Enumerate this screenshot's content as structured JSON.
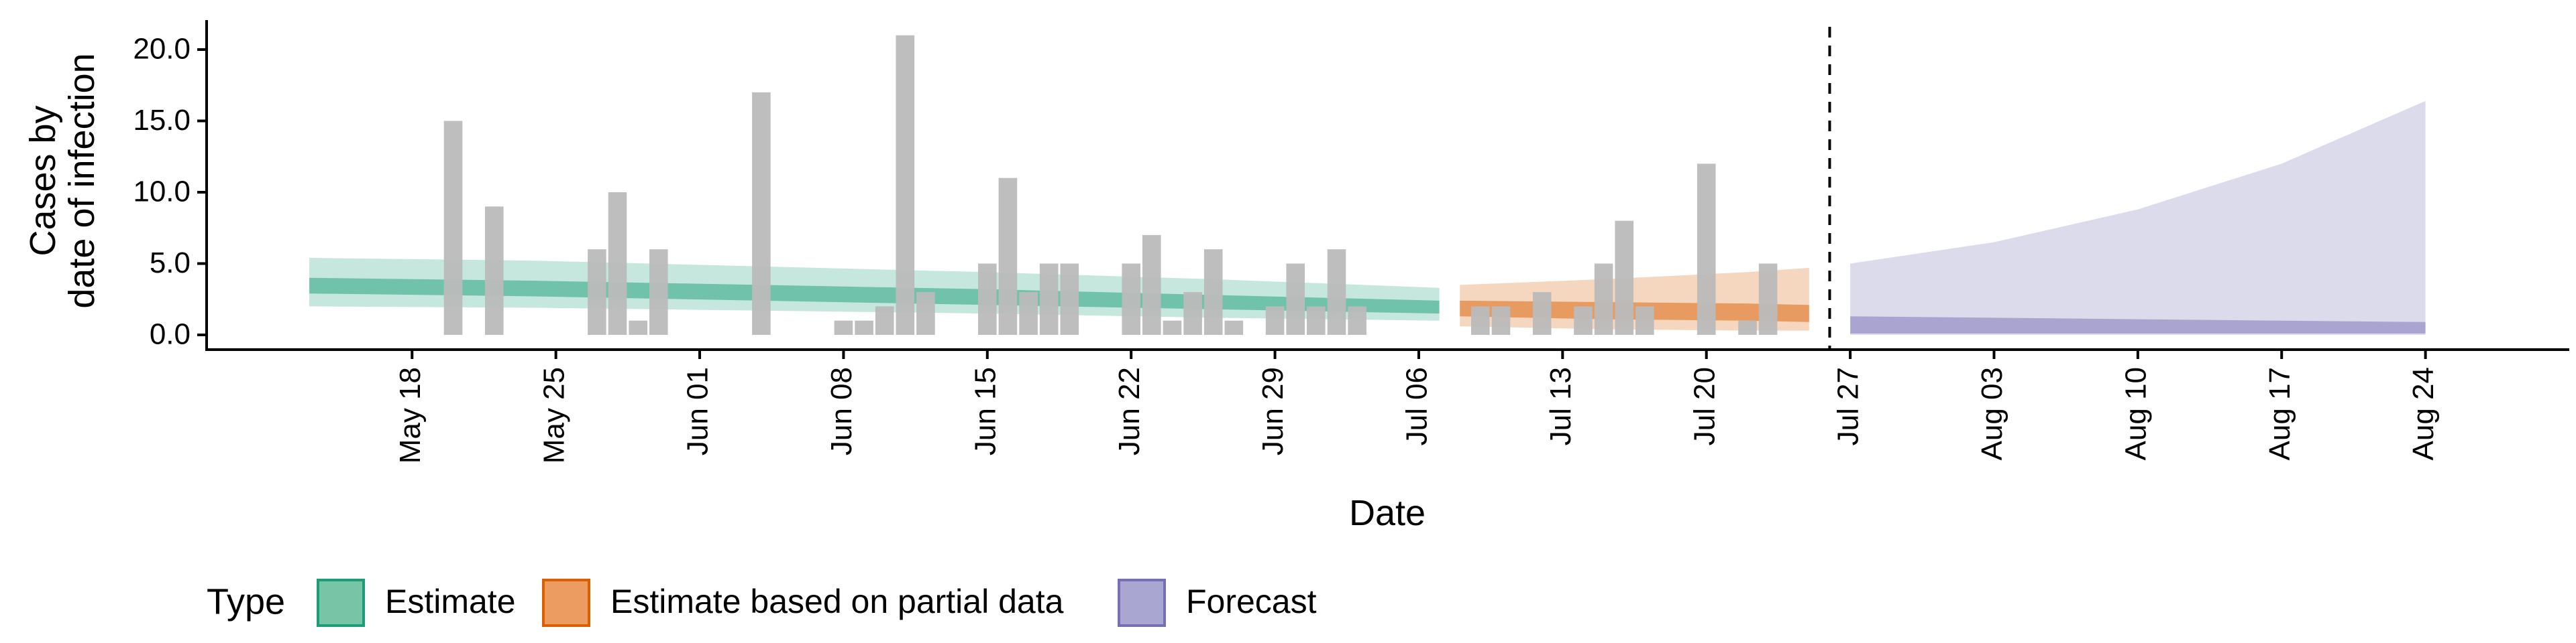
{
  "chart_data": {
    "type": "bar",
    "xlabel": "Date",
    "ylabel_line1": "Cases by",
    "ylabel_line2": "date of infection",
    "ylim": [
      0,
      22
    ],
    "yticks": [
      "0.0",
      "5.0",
      "10.0",
      "15.0",
      "20.0"
    ],
    "xlim": [
      "2020-05-08",
      "2020-08-31"
    ],
    "x_ticks": [
      {
        "date": "2020-05-18",
        "label": "May 18"
      },
      {
        "date": "2020-05-25",
        "label": "May 25"
      },
      {
        "date": "2020-06-01",
        "label": "Jun 01"
      },
      {
        "date": "2020-06-08",
        "label": "Jun 08"
      },
      {
        "date": "2020-06-15",
        "label": "Jun 15"
      },
      {
        "date": "2020-06-22",
        "label": "Jun 22"
      },
      {
        "date": "2020-06-29",
        "label": "Jun 29"
      },
      {
        "date": "2020-07-06",
        "label": "Jul 06"
      },
      {
        "date": "2020-07-13",
        "label": "Jul 13"
      },
      {
        "date": "2020-07-20",
        "label": "Jul 20"
      },
      {
        "date": "2020-07-27",
        "label": "Jul 27"
      },
      {
        "date": "2020-08-03",
        "label": "Aug 03"
      },
      {
        "date": "2020-08-10",
        "label": "Aug 10"
      },
      {
        "date": "2020-08-17",
        "label": "Aug 17"
      },
      {
        "date": "2020-08-24",
        "label": "Aug 24"
      }
    ],
    "cases": {
      "color": "#bbbbbb",
      "bars": [
        {
          "date": "2020-05-20",
          "value": 15
        },
        {
          "date": "2020-05-22",
          "value": 9
        },
        {
          "date": "2020-05-27",
          "value": 6
        },
        {
          "date": "2020-05-28",
          "value": 10
        },
        {
          "date": "2020-05-29",
          "value": 1
        },
        {
          "date": "2020-05-30",
          "value": 6
        },
        {
          "date": "2020-06-04",
          "value": 17
        },
        {
          "date": "2020-06-08",
          "value": 1
        },
        {
          "date": "2020-06-09",
          "value": 1
        },
        {
          "date": "2020-06-10",
          "value": 2
        },
        {
          "date": "2020-06-11",
          "value": 21
        },
        {
          "date": "2020-06-12",
          "value": 3
        },
        {
          "date": "2020-06-15",
          "value": 5
        },
        {
          "date": "2020-06-16",
          "value": 11
        },
        {
          "date": "2020-06-17",
          "value": 3
        },
        {
          "date": "2020-06-18",
          "value": 5
        },
        {
          "date": "2020-06-19",
          "value": 5
        },
        {
          "date": "2020-06-22",
          "value": 5
        },
        {
          "date": "2020-06-23",
          "value": 7
        },
        {
          "date": "2020-06-24",
          "value": 1
        },
        {
          "date": "2020-06-25",
          "value": 3
        },
        {
          "date": "2020-06-26",
          "value": 6
        },
        {
          "date": "2020-06-27",
          "value": 1
        },
        {
          "date": "2020-06-29",
          "value": 2
        },
        {
          "date": "2020-06-30",
          "value": 5
        },
        {
          "date": "2020-07-01",
          "value": 2
        },
        {
          "date": "2020-07-02",
          "value": 6
        },
        {
          "date": "2020-07-03",
          "value": 2
        },
        {
          "date": "2020-07-09",
          "value": 2
        },
        {
          "date": "2020-07-10",
          "value": 2
        },
        {
          "date": "2020-07-12",
          "value": 3
        },
        {
          "date": "2020-07-14",
          "value": 2
        },
        {
          "date": "2020-07-15",
          "value": 5
        },
        {
          "date": "2020-07-16",
          "value": 8
        },
        {
          "date": "2020-07-17",
          "value": 2
        },
        {
          "date": "2020-07-20",
          "value": 12
        },
        {
          "date": "2020-07-22",
          "value": 1
        },
        {
          "date": "2020-07-23",
          "value": 5
        }
      ]
    },
    "forecast_start": "2020-07-26",
    "series": [
      {
        "name": "Estimate",
        "fill": "#1b9e77",
        "legend_fill": "#77c4a7",
        "legend_stroke": "#1b9e77",
        "points": [
          {
            "date": "2020-05-13",
            "median": 3.4,
            "inner_lo": 2.9,
            "inner_hi": 4.0,
            "outer_lo": 2.0,
            "outer_hi": 5.4
          },
          {
            "date": "2020-05-24",
            "median": 3.2,
            "inner_lo": 2.7,
            "inner_hi": 3.8,
            "outer_lo": 1.9,
            "outer_hi": 5.2
          },
          {
            "date": "2020-06-04",
            "median": 2.9,
            "inner_lo": 2.4,
            "inner_hi": 3.5,
            "outer_lo": 1.7,
            "outer_hi": 4.8
          },
          {
            "date": "2020-06-15",
            "median": 2.6,
            "inner_lo": 2.1,
            "inner_hi": 3.2,
            "outer_lo": 1.5,
            "outer_hi": 4.4
          },
          {
            "date": "2020-06-26",
            "median": 2.2,
            "inner_lo": 1.8,
            "inner_hi": 2.8,
            "outer_lo": 1.2,
            "outer_hi": 3.9
          },
          {
            "date": "2020-07-07",
            "median": 1.9,
            "inner_lo": 1.5,
            "inner_hi": 2.4,
            "outer_lo": 1.0,
            "outer_hi": 3.3
          }
        ]
      },
      {
        "name": "Estimate based on partial data",
        "fill": "#d95f02",
        "legend_fill": "#ec9c60",
        "legend_stroke": "#d95f02",
        "points": [
          {
            "date": "2020-07-08",
            "median": 1.8,
            "inner_lo": 1.3,
            "inner_hi": 2.4,
            "outer_lo": 0.6,
            "outer_hi": 3.5
          },
          {
            "date": "2020-07-15",
            "median": 1.7,
            "inner_lo": 1.1,
            "inner_hi": 2.3,
            "outer_lo": 0.4,
            "outer_hi": 3.9
          },
          {
            "date": "2020-07-22",
            "median": 1.6,
            "inner_lo": 1.0,
            "inner_hi": 2.2,
            "outer_lo": 0.3,
            "outer_hi": 4.4
          },
          {
            "date": "2020-07-25",
            "median": 1.5,
            "inner_lo": 0.9,
            "inner_hi": 2.1,
            "outer_lo": 0.3,
            "outer_hi": 4.7
          }
        ]
      },
      {
        "name": "Forecast",
        "fill": "#7570b3",
        "legend_fill": "#a9a6d1",
        "legend_stroke": "#7570b3",
        "points": [
          {
            "date": "2020-07-27",
            "median": 0.6,
            "inner_lo": 0.1,
            "inner_hi": 1.3,
            "outer_lo": 0.0,
            "outer_hi": 5.0
          },
          {
            "date": "2020-08-03",
            "median": 0.6,
            "inner_lo": 0.1,
            "inner_hi": 1.2,
            "outer_lo": 0.0,
            "outer_hi": 6.5
          },
          {
            "date": "2020-08-10",
            "median": 0.5,
            "inner_lo": 0.1,
            "inner_hi": 1.1,
            "outer_lo": 0.0,
            "outer_hi": 8.8
          },
          {
            "date": "2020-08-17",
            "median": 0.5,
            "inner_lo": 0.1,
            "inner_hi": 1.0,
            "outer_lo": 0.0,
            "outer_hi": 12.0
          },
          {
            "date": "2020-08-24",
            "median": 0.4,
            "inner_lo": 0.1,
            "inner_hi": 0.9,
            "outer_lo": 0.0,
            "outer_hi": 16.4
          }
        ]
      }
    ],
    "legend": {
      "title": "Type",
      "placement": "bottom-left",
      "items": [
        "Estimate",
        "Estimate based on partial data",
        "Forecast"
      ]
    },
    "grid": false
  }
}
